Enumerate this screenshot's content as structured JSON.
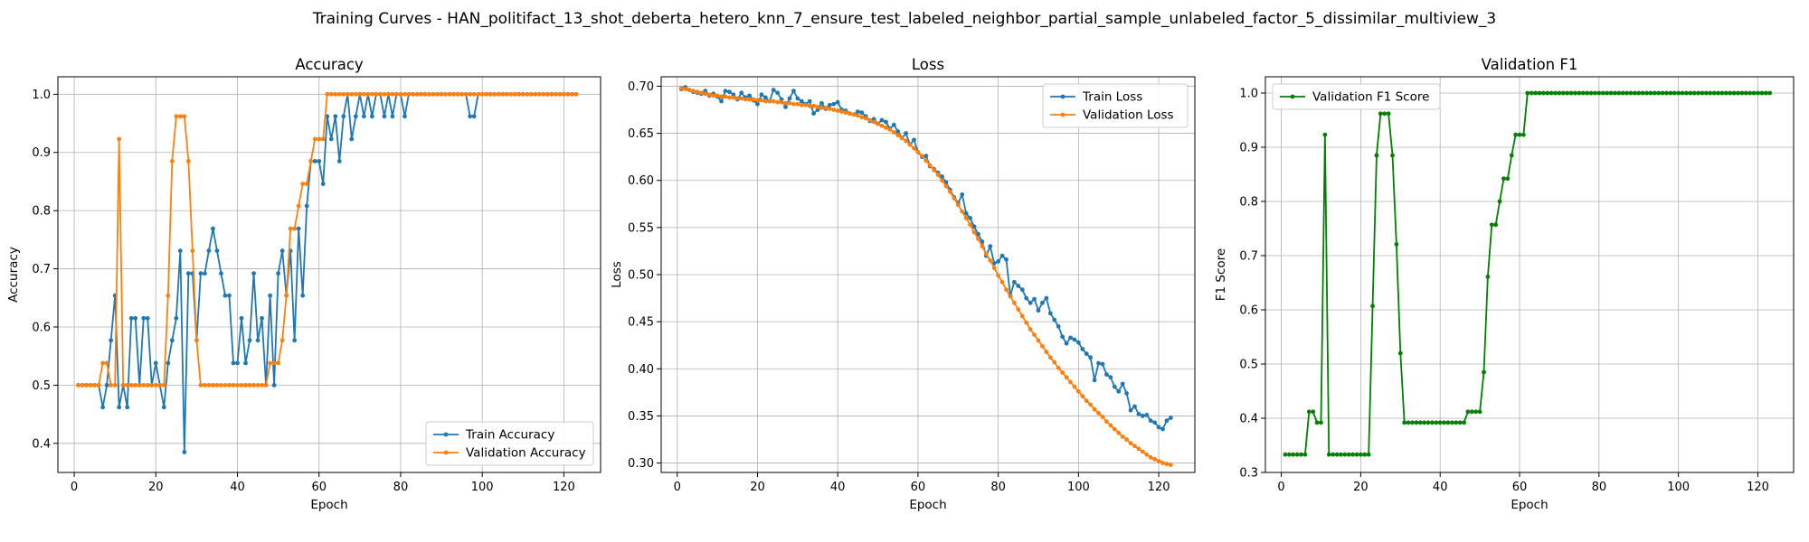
{
  "suptitle": "Training Curves - HAN_politifact_13_shot_deberta_hetero_knn_7_ensure_test_labeled_neighbor_partial_sample_unlabeled_factor_5_dissimilar_multiview_3",
  "chart_data": [
    {
      "type": "line",
      "title": "Accuracy",
      "xlabel": "Epoch",
      "ylabel": "Accuracy",
      "xlim": [
        -4,
        129
      ],
      "ylim": [
        0.35,
        1.03
      ],
      "xticks": [
        0,
        20,
        40,
        60,
        80,
        100,
        120
      ],
      "yticks": [
        0.4,
        0.5,
        0.6,
        0.7,
        0.8,
        0.9,
        1.0
      ],
      "ytick_decimals": 1,
      "grid": true,
      "legend_position": "lower-right",
      "series": [
        {
          "name": "Train Accuracy",
          "color": "#1f77b4",
          "x_start": 1,
          "values": [
            0.5,
            0.5,
            0.5,
            0.5,
            0.5,
            0.5,
            0.462,
            0.5,
            0.577,
            0.654,
            0.462,
            0.5,
            0.462,
            0.615,
            0.615,
            0.5,
            0.615,
            0.615,
            0.5,
            0.538,
            0.5,
            0.462,
            0.538,
            0.577,
            0.615,
            0.731,
            0.385,
            0.692,
            0.692,
            0.577,
            0.692,
            0.692,
            0.731,
            0.769,
            0.731,
            0.692,
            0.654,
            0.654,
            0.538,
            0.538,
            0.615,
            0.538,
            0.577,
            0.692,
            0.577,
            0.615,
            0.5,
            0.654,
            0.5,
            0.692,
            0.731,
            0.654,
            0.731,
            0.577,
            0.769,
            0.654,
            0.808,
            0.885,
            0.885,
            0.885,
            0.846,
            0.962,
            0.923,
            0.962,
            0.885,
            0.962,
            1.0,
            0.923,
            0.962,
            1.0,
            0.962,
            1.0,
            0.962,
            1.0,
            1.0,
            0.962,
            1.0,
            0.962,
            1.0,
            1.0,
            0.962,
            1.0,
            1.0,
            1.0,
            1.0,
            1.0,
            1.0,
            1.0,
            1.0,
            1.0,
            1.0,
            1.0,
            1.0,
            1.0,
            1.0,
            1.0,
            0.962,
            0.962,
            1.0,
            1.0,
            1.0,
            1.0,
            1.0,
            1.0,
            1.0,
            1.0,
            1.0,
            1.0,
            1.0,
            1.0,
            1.0,
            1.0,
            1.0,
            1.0,
            1.0,
            1.0,
            1.0,
            1.0,
            1.0,
            1.0,
            1.0,
            1.0,
            1.0
          ]
        },
        {
          "name": "Validation Accuracy",
          "color": "#ff7f0e",
          "x_start": 1,
          "values": [
            0.5,
            0.5,
            0.5,
            0.5,
            0.5,
            0.5,
            0.538,
            0.538,
            0.5,
            0.5,
            0.923,
            0.5,
            0.5,
            0.5,
            0.5,
            0.5,
            0.5,
            0.5,
            0.5,
            0.5,
            0.5,
            0.5,
            0.654,
            0.885,
            0.962,
            0.962,
            0.962,
            0.885,
            0.731,
            0.577,
            0.5,
            0.5,
            0.5,
            0.5,
            0.5,
            0.5,
            0.5,
            0.5,
            0.5,
            0.5,
            0.5,
            0.5,
            0.5,
            0.5,
            0.5,
            0.5,
            0.5,
            0.538,
            0.538,
            0.538,
            0.577,
            0.654,
            0.769,
            0.769,
            0.808,
            0.846,
            0.846,
            0.885,
            0.923,
            0.923,
            0.923,
            1.0,
            1.0,
            1.0,
            1.0,
            1.0,
            1.0,
            1.0,
            1.0,
            1.0,
            1.0,
            1.0,
            1.0,
            1.0,
            1.0,
            1.0,
            1.0,
            1.0,
            1.0,
            1.0,
            1.0,
            1.0,
            1.0,
            1.0,
            1.0,
            1.0,
            1.0,
            1.0,
            1.0,
            1.0,
            1.0,
            1.0,
            1.0,
            1.0,
            1.0,
            1.0,
            1.0,
            1.0,
            1.0,
            1.0,
            1.0,
            1.0,
            1.0,
            1.0,
            1.0,
            1.0,
            1.0,
            1.0,
            1.0,
            1.0,
            1.0,
            1.0,
            1.0,
            1.0,
            1.0,
            1.0,
            1.0,
            1.0,
            1.0,
            1.0,
            1.0,
            1.0,
            1.0
          ]
        }
      ]
    },
    {
      "type": "line",
      "title": "Loss",
      "xlabel": "Epoch",
      "ylabel": "Loss",
      "xlim": [
        -4,
        129
      ],
      "ylim": [
        0.29,
        0.71
      ],
      "xticks": [
        0,
        20,
        40,
        60,
        80,
        100,
        120
      ],
      "yticks": [
        0.3,
        0.35,
        0.4,
        0.45,
        0.5,
        0.55,
        0.6,
        0.65,
        0.7
      ],
      "ytick_decimals": 2,
      "grid": true,
      "legend_position": "top-right",
      "series": [
        {
          "name": "Train Loss",
          "color": "#1f77b4",
          "x_start": 1,
          "values": [
            0.697,
            0.699,
            0.696,
            0.694,
            0.693,
            0.692,
            0.695,
            0.69,
            0.692,
            0.689,
            0.684,
            0.695,
            0.694,
            0.691,
            0.686,
            0.693,
            0.688,
            0.69,
            0.685,
            0.681,
            0.691,
            0.688,
            0.684,
            0.696,
            0.693,
            0.686,
            0.678,
            0.687,
            0.695,
            0.687,
            0.684,
            0.681,
            0.684,
            0.671,
            0.675,
            0.682,
            0.676,
            0.68,
            0.681,
            0.683,
            0.675,
            0.674,
            0.671,
            0.67,
            0.673,
            0.672,
            0.668,
            0.663,
            0.665,
            0.66,
            0.664,
            0.662,
            0.655,
            0.659,
            0.652,
            0.645,
            0.65,
            0.638,
            0.643,
            0.63,
            0.625,
            0.626,
            0.615,
            0.612,
            0.608,
            0.604,
            0.598,
            0.59,
            0.582,
            0.576,
            0.585,
            0.565,
            0.56,
            0.551,
            0.543,
            0.535,
            0.52,
            0.53,
            0.512,
            0.514,
            0.52,
            0.516,
            0.478,
            0.492,
            0.488,
            0.484,
            0.475,
            0.47,
            0.474,
            0.462,
            0.47,
            0.475,
            0.459,
            0.452,
            0.445,
            0.434,
            0.427,
            0.433,
            0.431,
            0.428,
            0.421,
            0.416,
            0.412,
            0.388,
            0.406,
            0.405,
            0.394,
            0.391,
            0.381,
            0.376,
            0.384,
            0.374,
            0.356,
            0.36,
            0.352,
            0.35,
            0.351,
            0.345,
            0.343,
            0.338,
            0.336,
            0.345,
            0.348
          ]
        },
        {
          "name": "Validation Loss",
          "color": "#ff7f0e",
          "x_start": 1,
          "values": [
            0.698,
            0.697,
            0.696,
            0.695,
            0.694,
            0.693,
            0.692,
            0.691,
            0.69,
            0.69,
            0.689,
            0.689,
            0.688,
            0.688,
            0.687,
            0.687,
            0.686,
            0.686,
            0.686,
            0.685,
            0.685,
            0.684,
            0.684,
            0.684,
            0.683,
            0.683,
            0.682,
            0.682,
            0.681,
            0.681,
            0.68,
            0.68,
            0.679,
            0.679,
            0.678,
            0.677,
            0.677,
            0.676,
            0.675,
            0.674,
            0.673,
            0.672,
            0.671,
            0.67,
            0.669,
            0.667,
            0.666,
            0.664,
            0.662,
            0.66,
            0.658,
            0.656,
            0.654,
            0.651,
            0.648,
            0.645,
            0.642,
            0.638,
            0.634,
            0.63,
            0.626,
            0.621,
            0.616,
            0.611,
            0.606,
            0.6,
            0.594,
            0.588,
            0.581,
            0.574,
            0.567,
            0.56,
            0.553,
            0.545,
            0.538,
            0.53,
            0.522,
            0.515,
            0.507,
            0.499,
            0.492,
            0.484,
            0.477,
            0.47,
            0.463,
            0.456,
            0.449,
            0.442,
            0.436,
            0.43,
            0.424,
            0.418,
            0.412,
            0.407,
            0.401,
            0.396,
            0.391,
            0.386,
            0.381,
            0.376,
            0.371,
            0.366,
            0.362,
            0.357,
            0.353,
            0.349,
            0.344,
            0.34,
            0.336,
            0.332,
            0.328,
            0.325,
            0.321,
            0.318,
            0.315,
            0.312,
            0.309,
            0.306,
            0.304,
            0.302,
            0.3,
            0.299,
            0.298
          ]
        }
      ]
    },
    {
      "type": "line",
      "title": "Validation F1",
      "xlabel": "Epoch",
      "ylabel": "F1 Score",
      "xlim": [
        -4,
        129
      ],
      "ylim": [
        0.3,
        1.03
      ],
      "xticks": [
        0,
        20,
        40,
        60,
        80,
        100,
        120
      ],
      "yticks": [
        0.3,
        0.4,
        0.5,
        0.6,
        0.7,
        0.8,
        0.9,
        1.0
      ],
      "ytick_decimals": 1,
      "grid": true,
      "legend_position": "top-left",
      "series": [
        {
          "name": "Validation F1 Score",
          "color": "#008000",
          "x_start": 1,
          "values": [
            0.333,
            0.333,
            0.333,
            0.333,
            0.333,
            0.333,
            0.412,
            0.412,
            0.392,
            0.392,
            0.923,
            0.333,
            0.333,
            0.333,
            0.333,
            0.333,
            0.333,
            0.333,
            0.333,
            0.333,
            0.333,
            0.333,
            0.607,
            0.885,
            0.962,
            0.962,
            0.962,
            0.885,
            0.721,
            0.52,
            0.392,
            0.392,
            0.392,
            0.392,
            0.392,
            0.392,
            0.392,
            0.392,
            0.392,
            0.392,
            0.392,
            0.392,
            0.392,
            0.392,
            0.392,
            0.392,
            0.412,
            0.412,
            0.412,
            0.412,
            0.485,
            0.661,
            0.757,
            0.757,
            0.8,
            0.842,
            0.842,
            0.885,
            0.923,
            0.923,
            0.923,
            1.0,
            1.0,
            1.0,
            1.0,
            1.0,
            1.0,
            1.0,
            1.0,
            1.0,
            1.0,
            1.0,
            1.0,
            1.0,
            1.0,
            1.0,
            1.0,
            1.0,
            1.0,
            1.0,
            1.0,
            1.0,
            1.0,
            1.0,
            1.0,
            1.0,
            1.0,
            1.0,
            1.0,
            1.0,
            1.0,
            1.0,
            1.0,
            1.0,
            1.0,
            1.0,
            1.0,
            1.0,
            1.0,
            1.0,
            1.0,
            1.0,
            1.0,
            1.0,
            1.0,
            1.0,
            1.0,
            1.0,
            1.0,
            1.0,
            1.0,
            1.0,
            1.0,
            1.0,
            1.0,
            1.0,
            1.0,
            1.0,
            1.0,
            1.0,
            1.0,
            1.0,
            1.0
          ]
        }
      ]
    }
  ]
}
